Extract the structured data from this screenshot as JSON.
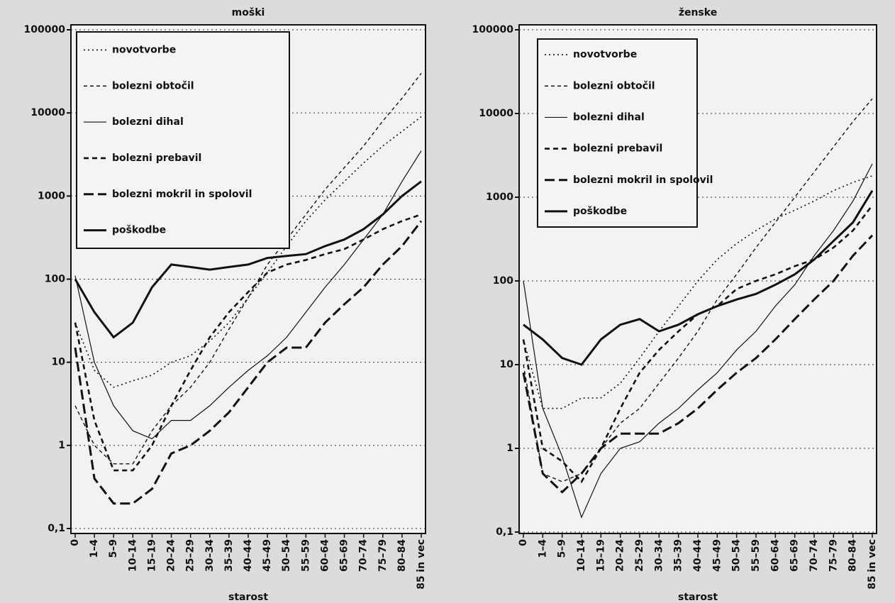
{
  "chart_data": [
    {
      "type": "line",
      "title": "moški",
      "xlabel": "starost",
      "log_y": true,
      "grid": true,
      "legend": "upper left",
      "categories": [
        "0",
        "1–4",
        "5–9",
        "10–14",
        "15–19",
        "20–24",
        "25–29",
        "30–34",
        "35–39",
        "40–44",
        "45–49",
        "50–54",
        "55–59",
        "60–64",
        "65–69",
        "70–74",
        "75–79",
        "80–84",
        "85 in vec"
      ],
      "ylim": [
        0.1,
        100000
      ],
      "yticks": [
        {
          "value": 0.1,
          "label": "0,1"
        },
        1,
        10,
        100,
        1000,
        10000,
        100000
      ],
      "series": [
        {
          "name": "novotvorbe",
          "color": "#111111",
          "dash": "2,4",
          "width": 1.6,
          "values": [
            30,
            8,
            5,
            6,
            7,
            10,
            12,
            18,
            30,
            60,
            120,
            250,
            500,
            900,
            1500,
            2500,
            4000,
            6000,
            9000
          ]
        },
        {
          "name": "bolezni obtočil",
          "color": "#111111",
          "dash": "5,4",
          "width": 1.4,
          "values": [
            3,
            1,
            0.6,
            0.6,
            1.5,
            3,
            5,
            10,
            25,
            60,
            150,
            300,
            600,
            1200,
            2200,
            4000,
            8000,
            15000,
            30000
          ]
        },
        {
          "name": "bolezni dihal",
          "color": "#111111",
          "dash": "",
          "width": 1.2,
          "values": [
            110,
            10,
            3,
            1.5,
            1.2,
            2,
            2,
            3,
            5,
            8,
            12,
            20,
            40,
            80,
            150,
            300,
            600,
            1500,
            3500
          ]
        },
        {
          "name": "bolezni prebavil",
          "color": "#111111",
          "dash": "7,5",
          "width": 2.6,
          "values": [
            30,
            2,
            0.5,
            0.5,
            1,
            3,
            8,
            20,
            40,
            70,
            120,
            150,
            170,
            200,
            230,
            300,
            400,
            500,
            600
          ]
        },
        {
          "name": "bolezni mokril in spolovil",
          "color": "#111111",
          "dash": "14,6",
          "width": 3,
          "values": [
            15,
            0.4,
            0.2,
            0.2,
            0.3,
            0.8,
            1,
            1.5,
            2.5,
            5,
            10,
            15,
            15,
            30,
            50,
            80,
            150,
            250,
            500
          ]
        },
        {
          "name": "poškodbe",
          "color": "#111111",
          "dash": "",
          "width": 3,
          "values": [
            100,
            40,
            20,
            30,
            80,
            150,
            140,
            130,
            140,
            150,
            180,
            190,
            200,
            250,
            300,
            400,
            600,
            1000,
            1500
          ]
        }
      ]
    },
    {
      "type": "line",
      "title": "ženske",
      "xlabel": "starost",
      "log_y": true,
      "grid": true,
      "legend": "upper left",
      "categories": [
        "0",
        "1–4",
        "5–9",
        "10–14",
        "15–19",
        "20–24",
        "25–29",
        "30–34",
        "35–39",
        "40–44",
        "45–49",
        "50–54",
        "55–59",
        "60–64",
        "65–69",
        "70–74",
        "75–79",
        "80–84",
        "85 in vec"
      ],
      "ylim": [
        0.1,
        100000
      ],
      "yticks": [
        {
          "value": 0.1,
          "label": "0,1"
        },
        1,
        10,
        100,
        1000,
        10000,
        100000
      ],
      "series": [
        {
          "name": "novotvorbe",
          "color": "#111111",
          "dash": "2,4",
          "width": 1.6,
          "values": [
            20,
            3,
            3,
            4,
            4,
            6,
            12,
            25,
            50,
            100,
            180,
            280,
            400,
            550,
            700,
            900,
            1200,
            1500,
            1800
          ]
        },
        {
          "name": "bolezni obtočil",
          "color": "#111111",
          "dash": "5,4",
          "width": 1.4,
          "values": [
            10,
            0.5,
            0.4,
            0.5,
            1,
            2,
            3,
            6,
            12,
            25,
            60,
            120,
            250,
            500,
            1000,
            2000,
            4000,
            8000,
            15000
          ]
        },
        {
          "name": "bolezni dihal",
          "color": "#111111",
          "dash": "",
          "width": 1.2,
          "values": [
            100,
            3,
            0.8,
            0.15,
            0.5,
            1,
            1.2,
            2,
            3,
            5,
            8,
            15,
            25,
            50,
            90,
            200,
            400,
            900,
            2500
          ]
        },
        {
          "name": "bolezni prebavil",
          "color": "#111111",
          "dash": "7,5",
          "width": 2.6,
          "values": [
            20,
            1,
            0.7,
            0.4,
            1,
            3,
            8,
            15,
            25,
            40,
            50,
            80,
            100,
            120,
            150,
            180,
            250,
            400,
            800
          ]
        },
        {
          "name": "bolezni mokril in spolovil",
          "color": "#111111",
          "dash": "14,6",
          "width": 3,
          "values": [
            8,
            0.5,
            0.3,
            0.5,
            1,
            1.5,
            1.5,
            1.5,
            2,
            3,
            5,
            8,
            12,
            20,
            35,
            60,
            100,
            200,
            350
          ]
        },
        {
          "name": "poškodbe",
          "color": "#111111",
          "dash": "",
          "width": 3,
          "values": [
            30,
            20,
            12,
            10,
            20,
            30,
            35,
            25,
            30,
            40,
            50,
            60,
            70,
            90,
            120,
            180,
            300,
            500,
            1200
          ]
        }
      ]
    }
  ]
}
